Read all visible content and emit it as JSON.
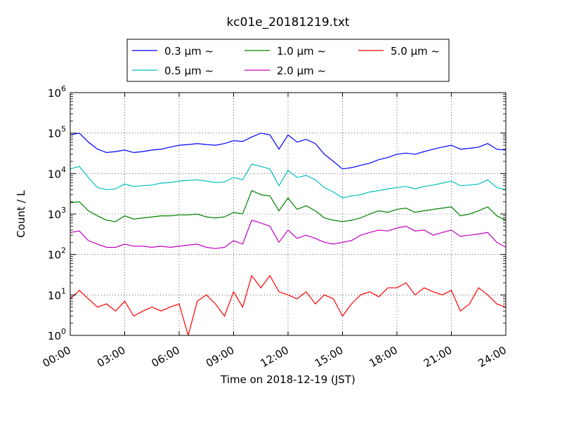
{
  "chart_data": {
    "type": "line",
    "title": "kc01e_20181219.txt",
    "xlabel": "Time on 2018-12-19 (JST)",
    "ylabel": "Count / L",
    "y_scale": "log",
    "ylim": [
      1,
      1000000
    ],
    "xlim_hours": [
      0,
      24
    ],
    "grid": true,
    "legend_placement": "top-center",
    "x_ticks": [
      "00:00",
      "03:00",
      "06:00",
      "09:00",
      "12:00",
      "15:00",
      "18:00",
      "21:00",
      "24:00"
    ],
    "y_ticks": [
      {
        "base": "10",
        "exp": "0"
      },
      {
        "base": "10",
        "exp": "1"
      },
      {
        "base": "10",
        "exp": "2"
      },
      {
        "base": "10",
        "exp": "3"
      },
      {
        "base": "10",
        "exp": "4"
      },
      {
        "base": "10",
        "exp": "5"
      },
      {
        "base": "10",
        "exp": "6"
      }
    ],
    "x_hours": [
      0,
      0.5,
      1,
      1.5,
      2,
      2.5,
      3,
      3.5,
      4,
      4.5,
      5,
      5.5,
      6,
      6.5,
      7,
      7.5,
      8,
      8.5,
      9,
      9.5,
      10,
      10.5,
      11,
      11.5,
      12,
      12.5,
      13,
      13.5,
      14,
      14.5,
      15,
      15.5,
      16,
      16.5,
      17,
      17.5,
      18,
      18.5,
      19,
      19.5,
      20,
      20.5,
      21,
      21.5,
      22,
      22.5,
      23,
      23.5,
      24
    ],
    "series": [
      {
        "name": "0.3 μm ~",
        "color": "#0000ff",
        "values": [
          90000,
          100000,
          60000,
          40000,
          33000,
          35000,
          38000,
          33000,
          35000,
          38000,
          40000,
          45000,
          50000,
          52000,
          55000,
          52000,
          50000,
          55000,
          65000,
          62000,
          80000,
          100000,
          90000,
          40000,
          90000,
          60000,
          70000,
          55000,
          30000,
          20000,
          13000,
          14000,
          16000,
          18000,
          22000,
          25000,
          30000,
          32000,
          30000,
          35000,
          40000,
          45000,
          50000,
          40000,
          42000,
          45000,
          55000,
          40000,
          38000
        ]
      },
      {
        "name": "0.5 μm ~",
        "color": "#00bfbf",
        "values": [
          13000,
          15000,
          8000,
          4500,
          4000,
          4200,
          5500,
          4800,
          5000,
          5200,
          5800,
          6000,
          6500,
          6800,
          7000,
          6500,
          6000,
          6200,
          8000,
          7000,
          17000,
          15000,
          13000,
          5000,
          12000,
          8000,
          9000,
          7000,
          4500,
          3500,
          2500,
          2800,
          3000,
          3500,
          3800,
          4200,
          4500,
          4800,
          4200,
          4800,
          5200,
          5800,
          6500,
          5000,
          5200,
          5500,
          7000,
          4500,
          4000
        ]
      },
      {
        "name": "1.0 μm ~",
        "color": "#008000",
        "values": [
          1900,
          2000,
          1200,
          900,
          700,
          650,
          900,
          750,
          800,
          850,
          900,
          900,
          950,
          950,
          1000,
          850,
          800,
          850,
          1100,
          1000,
          3800,
          3000,
          2800,
          1200,
          2500,
          1300,
          1600,
          1200,
          800,
          700,
          650,
          700,
          800,
          1000,
          1200,
          1100,
          1300,
          1400,
          1100,
          1200,
          1300,
          1400,
          1500,
          900,
          1000,
          1200,
          1500,
          900,
          700
        ]
      },
      {
        "name": "2.0 μm ~",
        "color": "#bf00bf",
        "values": [
          350,
          380,
          220,
          180,
          150,
          150,
          180,
          160,
          160,
          150,
          160,
          150,
          160,
          170,
          180,
          150,
          140,
          150,
          220,
          180,
          700,
          600,
          500,
          200,
          400,
          250,
          300,
          250,
          200,
          180,
          200,
          220,
          300,
          350,
          400,
          380,
          450,
          500,
          380,
          400,
          300,
          350,
          400,
          280,
          300,
          320,
          350,
          200,
          150
        ]
      },
      {
        "name": "5.0 μm ~",
        "color": "#ff0000",
        "values": [
          8,
          13,
          8,
          5,
          6,
          4,
          7,
          3,
          4,
          5,
          4,
          5,
          6,
          1,
          7,
          10,
          6,
          3,
          12,
          5,
          30,
          15,
          30,
          12,
          10,
          8,
          12,
          6,
          10,
          8,
          3,
          6,
          10,
          12,
          9,
          15,
          15,
          20,
          10,
          15,
          12,
          10,
          13,
          4,
          6,
          15,
          10,
          6,
          5
        ]
      }
    ]
  }
}
